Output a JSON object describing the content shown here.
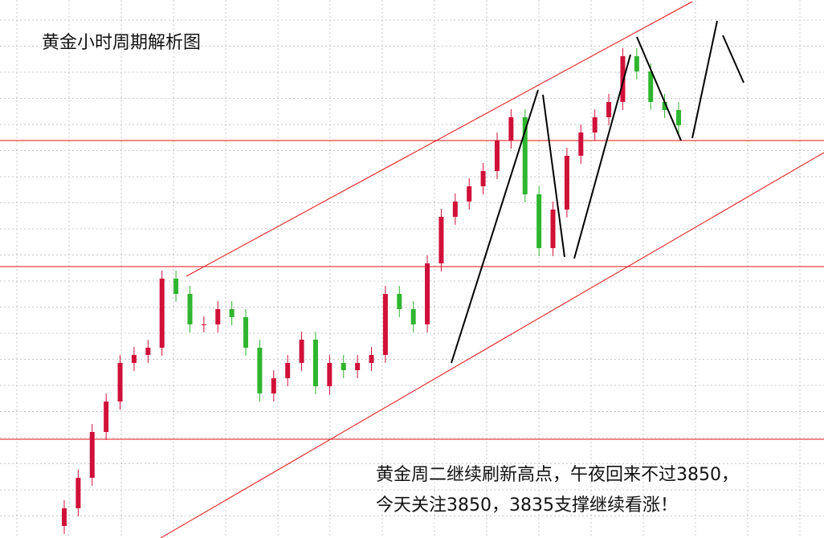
{
  "chart_data": {
    "type": "candlestick",
    "title": "黄金小时周期解析图",
    "annotation": [
      "黄金周二继续刷新高点，午夜回来不过3850，",
      "今天关注3850，3835支撑继续看涨！"
    ],
    "ylim": [
      3800,
      3867
    ],
    "grid": true,
    "up_color": "#d0103a",
    "down_color": "#2fb52f",
    "hlines": [
      3849.5,
      3833.8,
      3812.3
    ],
    "hline_color": "#e01010",
    "open": [
      3801.5,
      3803.7,
      3807.5,
      3813.2,
      3817.0,
      3821.8,
      3822.8,
      3823.7,
      3832.3,
      3830.4,
      3826.6,
      3826.6,
      3828.5,
      3827.5,
      3823.7,
      3818.0,
      3819.9,
      3821.8,
      3824.7,
      3818.9,
      3821.8,
      3820.9,
      3821.8,
      3822.8,
      3830.4,
      3828.5,
      3826.6,
      3834.2,
      3840.0,
      3841.9,
      3843.8,
      3845.7,
      3849.5,
      3852.4,
      3842.8,
      3836.1,
      3840.9,
      3847.6,
      3850.5,
      3852.4,
      3854.3,
      3860.0,
      3858.1,
      3854.3,
      3853.3
    ],
    "close": [
      3803.7,
      3807.5,
      3813.2,
      3817.0,
      3821.8,
      3822.8,
      3823.7,
      3832.3,
      3830.4,
      3826.6,
      3826.6,
      3828.5,
      3827.5,
      3823.7,
      3818.0,
      3819.9,
      3821.8,
      3824.7,
      3818.9,
      3821.8,
      3820.9,
      3821.8,
      3822.8,
      3830.4,
      3828.5,
      3826.6,
      3834.2,
      3840.0,
      3841.9,
      3843.8,
      3845.7,
      3849.5,
      3852.4,
      3842.8,
      3836.1,
      3840.9,
      3847.6,
      3850.5,
      3852.4,
      3854.3,
      3860.0,
      3858.1,
      3854.3,
      3853.3,
      3851.4
    ],
    "high": [
      3804.7,
      3808.5,
      3814.2,
      3818.0,
      3822.8,
      3823.8,
      3824.7,
      3833.3,
      3833.3,
      3831.4,
      3827.6,
      3829.5,
      3829.5,
      3828.5,
      3824.7,
      3820.9,
      3822.8,
      3825.7,
      3825.7,
      3822.8,
      3822.8,
      3822.8,
      3823.8,
      3831.4,
      3831.4,
      3829.5,
      3835.2,
      3841.0,
      3842.9,
      3844.8,
      3846.7,
      3850.5,
      3853.4,
      3853.4,
      3843.8,
      3841.9,
      3848.6,
      3851.5,
      3853.4,
      3855.3,
      3861.0,
      3861.0,
      3859.1,
      3855.3,
      3854.3
    ],
    "low": [
      3800.5,
      3802.7,
      3806.5,
      3812.2,
      3816.0,
      3820.8,
      3821.8,
      3822.7,
      3829.4,
      3825.6,
      3825.6,
      3825.6,
      3826.5,
      3822.7,
      3817.0,
      3817.0,
      3818.9,
      3820.8,
      3817.9,
      3817.9,
      3819.9,
      3819.9,
      3820.8,
      3821.8,
      3827.5,
      3825.6,
      3825.6,
      3833.2,
      3839.0,
      3840.9,
      3842.8,
      3844.7,
      3848.5,
      3841.8,
      3835.1,
      3835.1,
      3839.9,
      3846.6,
      3849.5,
      3851.4,
      3853.3,
      3857.1,
      3853.3,
      3852.3,
      3850.4
    ]
  }
}
